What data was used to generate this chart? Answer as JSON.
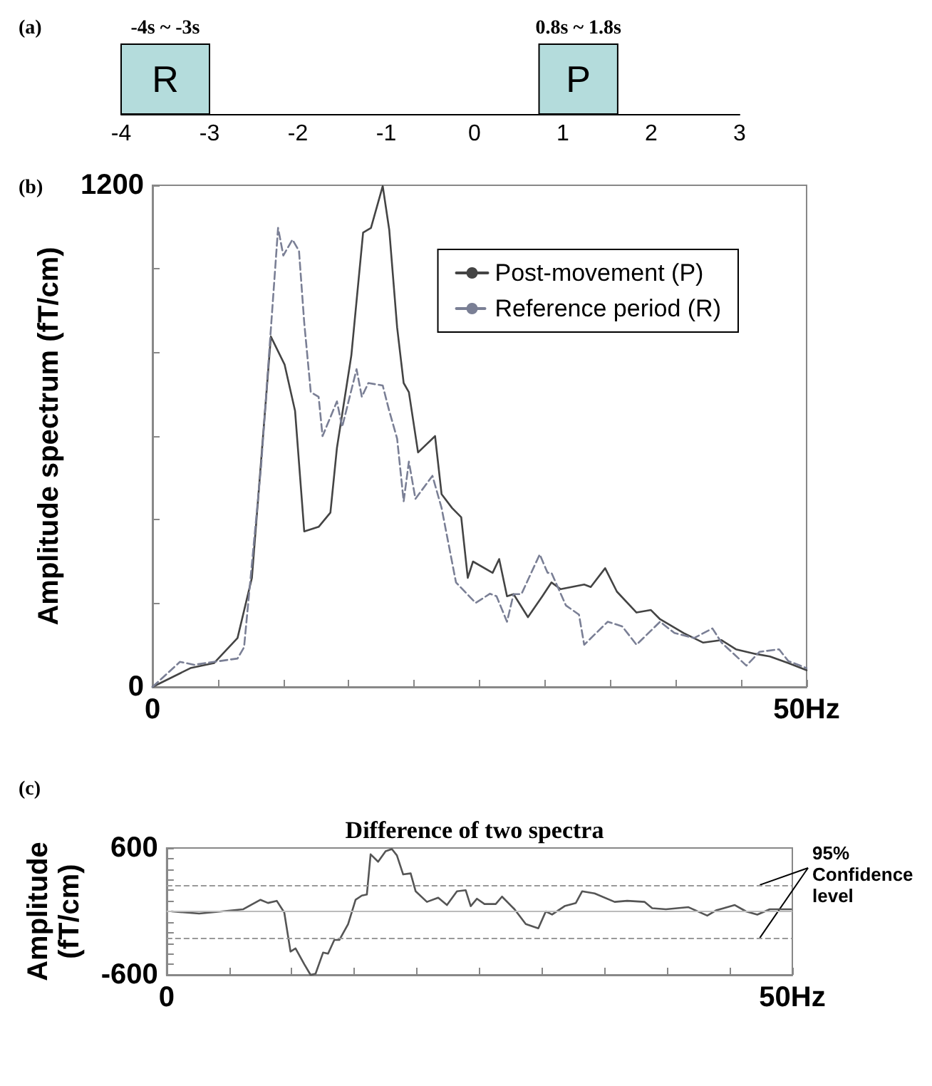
{
  "chart_data": [
    {
      "type": "bar",
      "title": "(a)",
      "orientation": "horizontal",
      "categories": [
        null
      ],
      "series": [
        {
          "name": "R",
          "color": "#b4dcdc",
          "values": [
            1
          ],
          "base": [
            -4
          ]
        },
        {
          "name": "P",
          "color": "#b4dcdc",
          "values": [
            0.89
          ],
          "base": [
            0.73
          ]
        }
      ],
      "annotations": [
        "-4s ~ -3s",
        "0.8s ~ 1.8s"
      ],
      "xlim": [
        -4,
        3
      ],
      "xticks": [
        -4,
        -3,
        -2,
        -1,
        0,
        1,
        2,
        3
      ],
      "tick_labels": "x",
      "legend": false
    },
    {
      "type": "line",
      "title": "(b)",
      "ylabel": "Amplitude spectrum (fT/cm)",
      "legend": "top right",
      "marker": "none",
      "series": [
        {
          "name": "Post-movement (P)",
          "color": "#444444",
          "line_style": "solid",
          "x": [
            0,
            2.9,
            4.7,
            6.5,
            7.6,
            9.05,
            10.1,
            10.9,
            11.6,
            12.7,
            13.6,
            14.1,
            15.2,
            16.1,
            16.7,
            17.6,
            18.1,
            18.7,
            19.2,
            19.6,
            20.3,
            21.6,
            22.1,
            22.9,
            23.6,
            24.1,
            24.5,
            26.0,
            26.5,
            27.1,
            27.6,
            28.7,
            29.8,
            30.5,
            31.2,
            33.0,
            33.5,
            34.6,
            35.5,
            37.0,
            38.1,
            38.8,
            40.6,
            42.1,
            43.5,
            44.6,
            46.1,
            47.2,
            48.6,
            50
          ],
          "values": [
            0,
            45,
            57,
            117,
            261,
            838,
            771,
            660,
            372,
            383,
            417,
            572,
            793,
            1087,
            1098,
            1198,
            1093,
            860,
            727,
            705,
            561,
            600,
            461,
            428,
            406,
            261,
            300,
            273,
            306,
            217,
            222,
            167,
            217,
            250,
            234,
            245,
            239,
            284,
            228,
            178,
            184,
            162,
            129,
            106,
            112,
            90,
            79,
            73,
            57,
            40
          ]
        },
        {
          "name": "Reference period (R)",
          "color": "#7a7f95",
          "line_style": "dashed",
          "x": [
            0,
            2.1,
            3.2,
            4.7,
            6.5,
            7.0,
            8.3,
            9.6,
            10.0,
            10.7,
            11.2,
            11.6,
            12.1,
            12.7,
            13.0,
            14.1,
            14.5,
            15.6,
            16.0,
            16.5,
            17.6,
            18.1,
            18.7,
            19.2,
            19.6,
            20.1,
            21.4,
            22.1,
            23.2,
            24.7,
            25.8,
            26.3,
            27.1,
            27.6,
            28.2,
            29.6,
            30.2,
            30.5,
            31.6,
            32.6,
            33.0,
            34.8,
            35.9,
            37.0,
            38.8,
            39.9,
            41.4,
            42.8,
            43.5,
            45.4,
            46.4,
            47.9,
            48.6,
            50
          ],
          "values": [
            0,
            60,
            53,
            60,
            68,
            95,
            527,
            1098,
            1032,
            1070,
            1043,
            871,
            705,
            694,
            600,
            683,
            622,
            760,
            694,
            727,
            721,
            660,
            594,
            444,
            539,
            450,
            505,
            428,
            250,
            201,
            223,
            217,
            156,
            222,
            222,
            317,
            273,
            273,
            195,
            173,
            101,
            156,
            145,
            101,
            156,
            129,
            117,
            140,
            106,
            51,
            84,
            90,
            62,
            45
          ]
        }
      ],
      "xlim": [
        0,
        50
      ],
      "xticks": [
        0,
        {
          "value": 5,
          "label": null
        },
        {
          "value": 10,
          "label": null
        },
        {
          "value": 15,
          "label": null
        },
        {
          "value": 20,
          "label": null
        },
        {
          "value": 25,
          "label": null
        },
        {
          "value": 30,
          "label": null
        },
        {
          "value": 35,
          "label": null
        },
        {
          "value": 40,
          "label": null
        },
        {
          "value": 45,
          "label": null
        },
        {
          "value": 50,
          "label": "50Hz"
        }
      ],
      "ylim": [
        0,
        1200
      ],
      "yticks": [
        0,
        {
          "value": 200,
          "label": null
        },
        {
          "value": 400,
          "label": null
        },
        {
          "value": 600,
          "label": null
        },
        {
          "value": 800,
          "label": null
        },
        {
          "value": 1000,
          "label": null
        },
        1200
      ]
    },
    {
      "type": "line",
      "title": "(c)",
      "subtitle": "Difference of two spectra",
      "ylabel": "Amplitude (fT/cm)",
      "marker": "none",
      "line_style": "solid",
      "legend": false,
      "series": [
        {
          "color": "#555555",
          "x": [
            0.4,
            2.6,
            4.4,
            6.1,
            7.5,
            8.1,
            8.8,
            9.4,
            9.9,
            10.3,
            11.0,
            11.5,
            11.9,
            12.5,
            12.9,
            13.4,
            13.8,
            14.5,
            15.1,
            15.6,
            16.0,
            16.3,
            16.9,
            17.5,
            18.0,
            18.4,
            18.9,
            19.5,
            19.9,
            20.8,
            21.7,
            22.4,
            23.2,
            23.9,
            24.3,
            24.8,
            25.4,
            26.3,
            26.8,
            27.8,
            28.7,
            29.7,
            30.3,
            30.8,
            31.8,
            32.7,
            33.2,
            34.2,
            35.8,
            36.8,
            38.2,
            38.8,
            39.9,
            41.7,
            43.2,
            43.9,
            45.4,
            46.3,
            47.2,
            48.2,
            49.9
          ],
          "values": [
            0,
            -20,
            0,
            20,
            110,
            80,
            100,
            -10,
            -380,
            -350,
            -500,
            -600,
            -590,
            -390,
            -400,
            -270,
            -270,
            -120,
            110,
            150,
            160,
            540,
            470,
            570,
            590,
            530,
            350,
            360,
            190,
            90,
            130,
            60,
            190,
            200,
            50,
            120,
            70,
            70,
            140,
            20,
            -120,
            -160,
            0,
            -30,
            50,
            80,
            190,
            170,
            90,
            100,
            90,
            30,
            20,
            40,
            -40,
            10,
            60,
            0,
            -30,
            20,
            20
          ]
        }
      ],
      "ref_lines": [
        {
          "axis": "y",
          "value": 250,
          "line_style": "dashed",
          "color": "#999999"
        },
        {
          "axis": "y",
          "value": -250,
          "line_style": "dashed",
          "color": "#999999"
        },
        {
          "axis": "y",
          "value": 0,
          "line_style": "solid",
          "color": "#bbbbbb"
        }
      ],
      "annotations": [
        {
          "text": "95% Confidence level",
          "x": 47.4,
          "y": 250
        }
      ],
      "xlim": [
        0,
        50
      ],
      "xticks": [
        0,
        {
          "value": 5,
          "label": null
        },
        {
          "value": 10,
          "label": null
        },
        {
          "value": 15,
          "label": null
        },
        {
          "value": 20,
          "label": null
        },
        {
          "value": 25,
          "label": null
        },
        {
          "value": 30,
          "label": null
        },
        {
          "value": 35,
          "label": null
        },
        {
          "value": 40,
          "label": null
        },
        {
          "value": 45,
          "label": null
        },
        {
          "value": 50,
          "label": "50Hz"
        }
      ],
      "ylim": [
        -600,
        600
      ],
      "yticks": [
        -600,
        {
          "value": -500,
          "label": null
        },
        {
          "value": -400,
          "label": null
        },
        {
          "value": -300,
          "label": null
        },
        {
          "value": -200,
          "label": null
        },
        {
          "value": -100,
          "label": null
        },
        {
          "value": 0,
          "label": null
        },
        {
          "value": 100,
          "label": null
        },
        {
          "value": 200,
          "label": null
        },
        {
          "value": 300,
          "label": null
        },
        {
          "value": 400,
          "label": null
        },
        {
          "value": 500,
          "label": null
        },
        600
      ]
    }
  ]
}
